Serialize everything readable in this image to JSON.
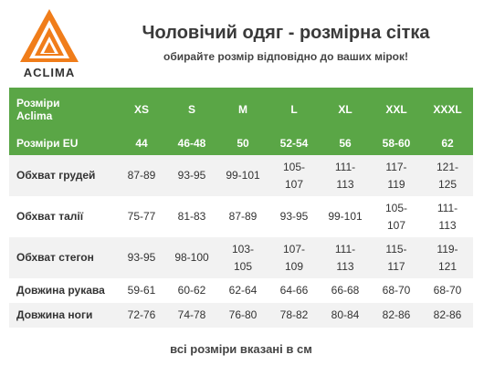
{
  "brand": {
    "name": "ACLIMA",
    "colors": {
      "logo_orange": "#f07d1a",
      "table_green": "#5aa646"
    }
  },
  "header": {
    "title": "Чоловічий одяг - розмірна сітка",
    "subtitle": "обирайте розмір відповідно до ваших мірок!"
  },
  "table": {
    "aclima_label": "Розміри\nAclima",
    "aclima_sizes": [
      "XS",
      "S",
      "M",
      "L",
      "XL",
      "XXL",
      "XXXL"
    ],
    "eu_label": "Розміри EU",
    "eu_sizes": [
      "44",
      "46-48",
      "50",
      "52-54",
      "56",
      "58-60",
      "62"
    ],
    "rows": [
      {
        "label": "Обхват грудей",
        "values": [
          "87-89",
          "93-95",
          "99-101",
          "105-\n107",
          "111-\n113",
          "117-\n119",
          "121-\n125"
        ]
      },
      {
        "label": "Обхват талії",
        "values": [
          "75-77",
          "81-83",
          "87-89",
          "93-95",
          "99-101",
          "105-\n107",
          "111-\n113"
        ]
      },
      {
        "label": "Обхват стегон",
        "values": [
          "93-95",
          "98-100",
          "103-\n105",
          "107-\n109",
          "111-\n113",
          "115-\n117",
          "119-\n121"
        ]
      },
      {
        "label": "Довжина рукава",
        "values": [
          "59-61",
          "60-62",
          "62-64",
          "64-66",
          "66-68",
          "68-70",
          "68-70"
        ]
      },
      {
        "label": "Довжина ноги",
        "values": [
          "72-76",
          "74-78",
          "76-80",
          "78-82",
          "80-84",
          "82-86",
          "82-86"
        ]
      }
    ]
  },
  "footer": {
    "note": "всі розміри вказані в см"
  }
}
